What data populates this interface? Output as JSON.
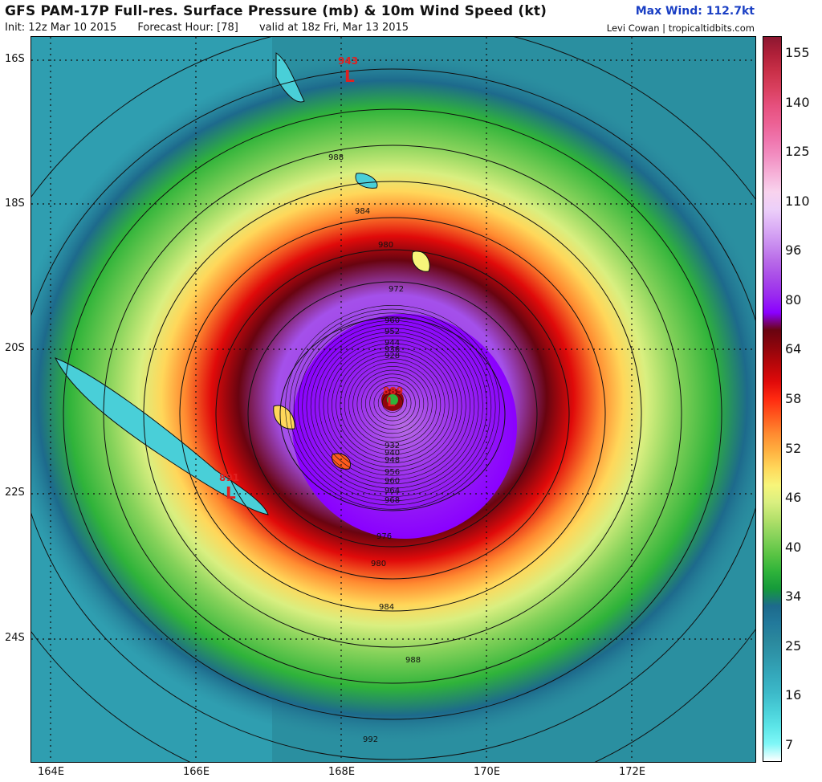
{
  "header": {
    "title": "GFS PAM-17P Full-res. Surface Pressure (mb) & 10m Wind Speed (kt)",
    "max_wind": "Max Wind: 112.7kt",
    "init": "Init: 12z Mar 10 2015",
    "forecast_hour": "Forecast Hour: [78]",
    "valid": "valid at 18z Fri, Mar 13 2015",
    "credit": "Levi Cowan | tropicaltidbits.com"
  },
  "axes": {
    "lat_labels": [
      "16S",
      "18S",
      "20S",
      "22S",
      "24S"
    ],
    "lon_labels": [
      "164E",
      "166E",
      "168E",
      "170E",
      "172E"
    ]
  },
  "isobar_labels": {
    "outer": [
      "988",
      "984",
      "980",
      "972",
      "976",
      "980",
      "984",
      "988",
      "992"
    ],
    "inner_north": [
      "960",
      "952",
      "944",
      "936",
      "928"
    ],
    "inner_south": [
      "932",
      "940",
      "948",
      "956",
      "960",
      "964",
      "968"
    ],
    "center": "889"
  },
  "lows": [
    {
      "value": "943",
      "symbol": "L"
    },
    {
      "value": "891",
      "symbol": "L"
    },
    {
      "value": "889",
      "symbol": "L"
    }
  ],
  "colorbar": {
    "labels": [
      "155",
      "140",
      "125",
      "110",
      "96",
      "80",
      "64",
      "58",
      "52",
      "46",
      "40",
      "34",
      "25",
      "16",
      "7"
    ],
    "colors": [
      "#ffffff",
      "#7ff7f7",
      "#5ce5e8",
      "#49cfd8",
      "#3cb8c8",
      "#34a8bb",
      "#2f97ab",
      "#2a889d",
      "#22799b",
      "#1d6a8c",
      "#159a3a",
      "#2fb33a",
      "#5bc444",
      "#85d25a",
      "#b2e06a",
      "#d9ef80",
      "#f7f57a",
      "#ffd75a",
      "#ffb040",
      "#ff8a30",
      "#ff5a1e",
      "#ff2a10",
      "#e00a0a",
      "#b8070a",
      "#8f050c",
      "#690410",
      "#8a00ff",
      "#9a2aef",
      "#a84ae8",
      "#b86ae8",
      "#ca8ff0",
      "#dcb0f6",
      "#eccff9",
      "#f8d3ee",
      "#f6b3d9",
      "#f292c4",
      "#ef76ae",
      "#ec6194",
      "#e6507e",
      "#d9405f",
      "#c93048",
      "#b02039",
      "#8c1730"
    ]
  }
}
